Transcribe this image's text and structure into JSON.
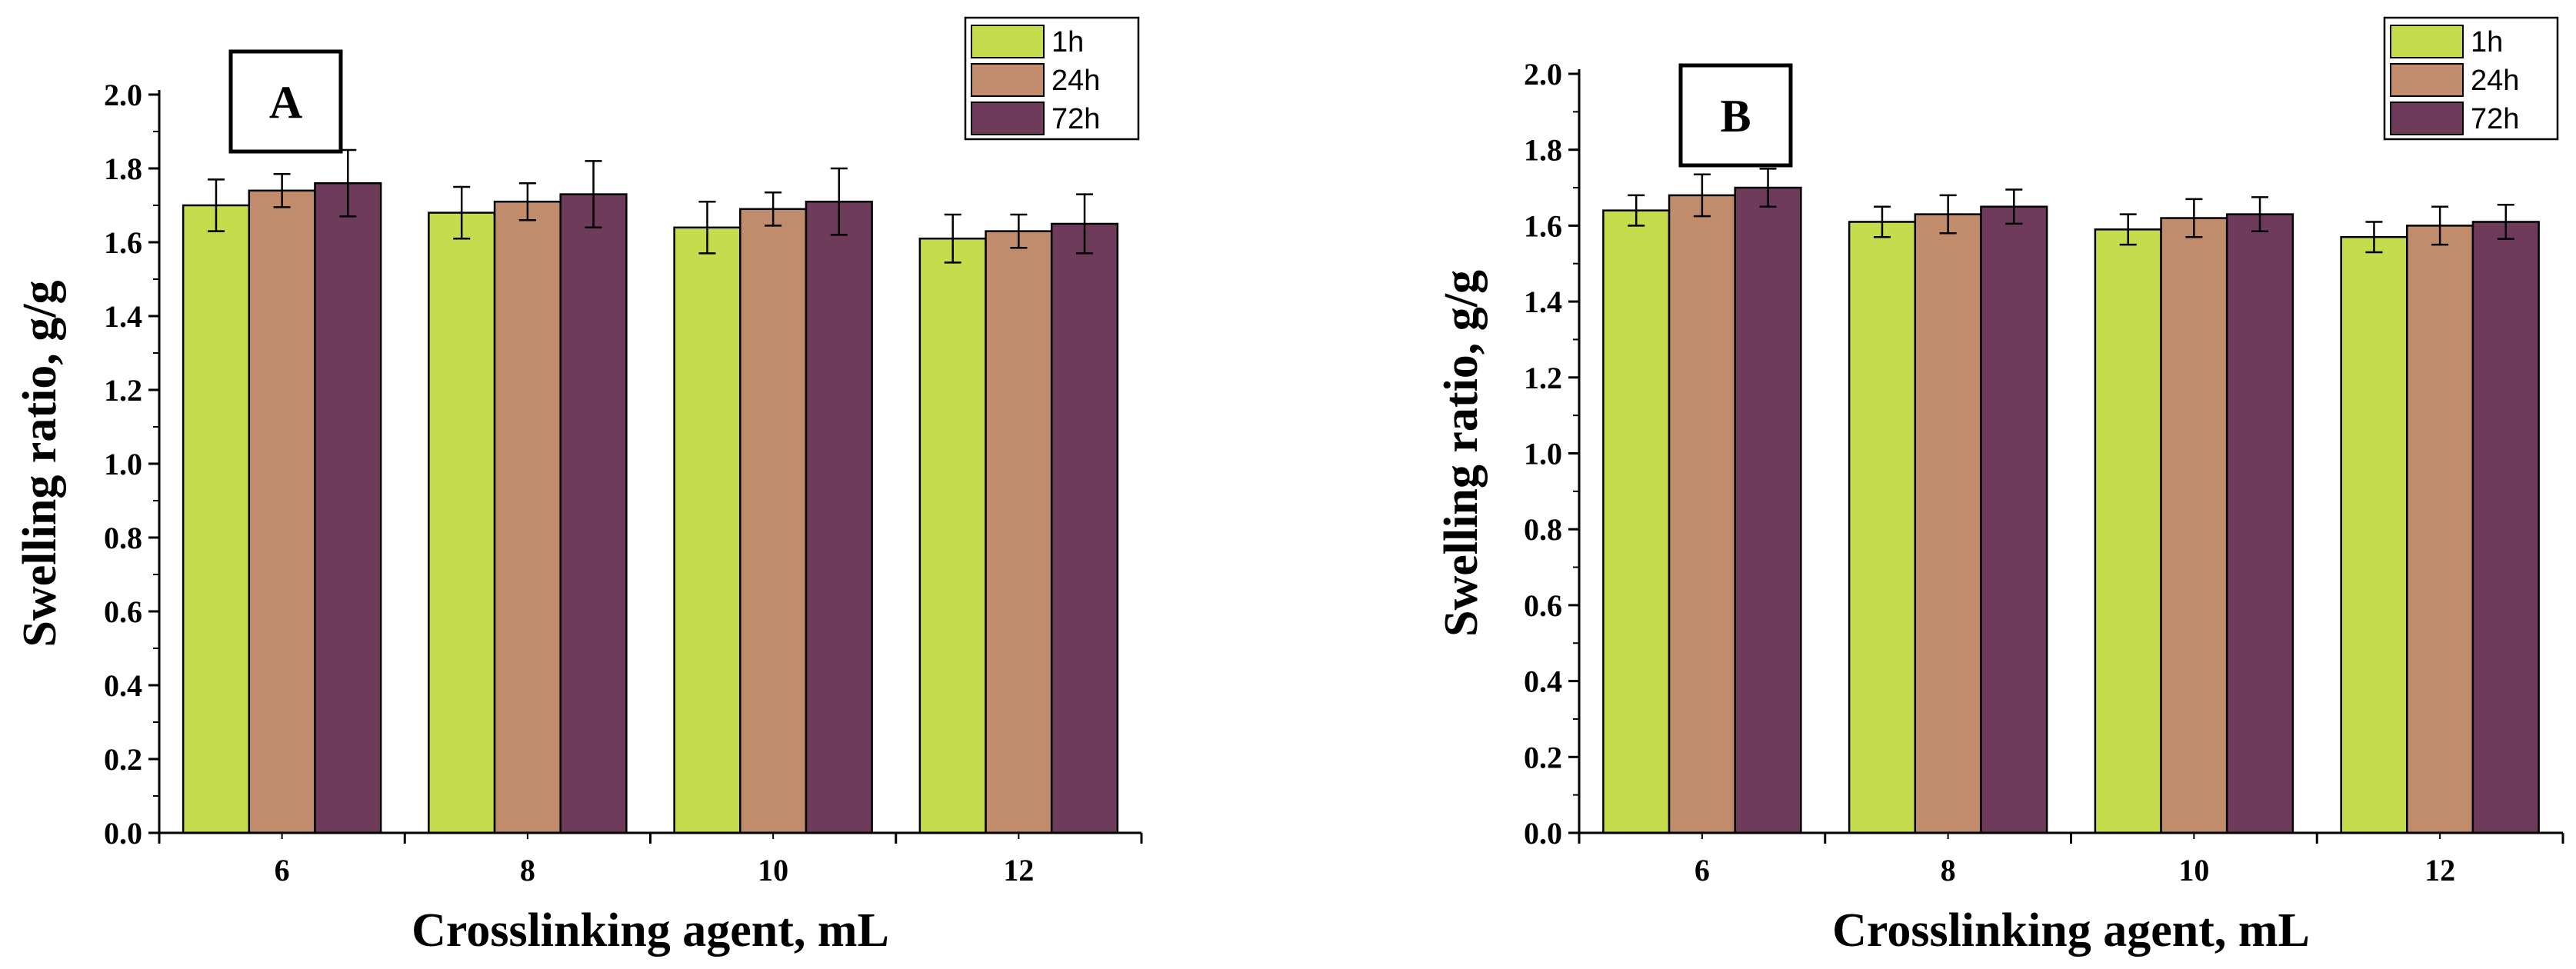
{
  "chart_data": [
    {
      "type": "bar",
      "panel_label": "A",
      "title": "",
      "xlabel": "Crosslinking agent, mL",
      "ylabel": "Swelling ratio, g/g",
      "ylim": [
        0,
        2.0
      ],
      "ytick_step": 0.2,
      "yticks": [
        "0.0",
        "0.2",
        "0.4",
        "0.6",
        "0.8",
        "1.0",
        "1.2",
        "1.4",
        "1.6",
        "1.8",
        "2.0"
      ],
      "categories": [
        "6",
        "8",
        "10",
        "12"
      ],
      "legend_position": "top-right",
      "series": [
        {
          "name": "1h",
          "color": "#c5dc4c",
          "values": [
            1.7,
            1.68,
            1.64,
            1.61
          ],
          "errors": [
            0.07,
            0.07,
            0.07,
            0.065
          ]
        },
        {
          "name": "24h",
          "color": "#c08c6c",
          "values": [
            1.74,
            1.71,
            1.69,
            1.63
          ],
          "errors": [
            0.045,
            0.05,
            0.045,
            0.045
          ]
        },
        {
          "name": "72h",
          "color": "#6e3c5a",
          "values": [
            1.76,
            1.73,
            1.71,
            1.65
          ],
          "errors": [
            0.09,
            0.09,
            0.09,
            0.08
          ]
        }
      ]
    },
    {
      "type": "bar",
      "panel_label": "B",
      "title": "",
      "xlabel": "Crosslinking agent, mL",
      "ylabel": "Swelling ratio, g/g",
      "ylim": [
        0,
        2.0
      ],
      "ytick_step": 0.2,
      "yticks": [
        "0.0",
        "0.2",
        "0.4",
        "0.6",
        "0.8",
        "1.0",
        "1.2",
        "1.4",
        "1.6",
        "1.8",
        "2.0"
      ],
      "categories": [
        "6",
        "8",
        "10",
        "12"
      ],
      "legend_position": "top-right",
      "series": [
        {
          "name": "1h",
          "color": "#c5dc4c",
          "values": [
            1.64,
            1.61,
            1.59,
            1.57
          ],
          "errors": [
            0.04,
            0.04,
            0.04,
            0.04
          ]
        },
        {
          "name": "24h",
          "color": "#c08c6c",
          "values": [
            1.68,
            1.63,
            1.62,
            1.6
          ],
          "errors": [
            0.055,
            0.05,
            0.05,
            0.05
          ]
        },
        {
          "name": "72h",
          "color": "#6e3c5a",
          "values": [
            1.7,
            1.65,
            1.63,
            1.61
          ],
          "errors": [
            0.05,
            0.045,
            0.045,
            0.045
          ]
        }
      ]
    }
  ]
}
